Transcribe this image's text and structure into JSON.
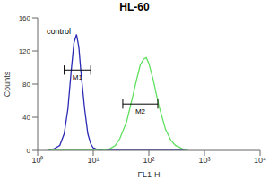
{
  "chart_data": {
    "type": "line",
    "title": "HL-60",
    "x_label": "FL1-H",
    "y_label": "Counts",
    "log": "x",
    "grid": false,
    "xlim": [
      1,
      10000
    ],
    "xticks": [
      {
        "value": 1,
        "label": "10⁰"
      },
      {
        "value": 10,
        "label": "10¹"
      },
      {
        "value": 100,
        "label": "10²"
      },
      {
        "value": 1000,
        "label": "10³"
      },
      {
        "value": 10000,
        "label": "10⁴"
      }
    ],
    "ylim": [
      0,
      160
    ],
    "yticks": [
      0,
      40,
      80,
      120,
      160
    ],
    "x": [
      1.5,
      2,
      2.5,
      3,
      3.5,
      4,
      4.5,
      5,
      5.5,
      6,
      7,
      8,
      9,
      10,
      12,
      15,
      20,
      25,
      30,
      40,
      50,
      60,
      70,
      80,
      90,
      100,
      120,
      150,
      200,
      250,
      300,
      400,
      500
    ],
    "series": [
      {
        "color": "#2b2bb5",
        "values": [
          0,
          2,
          6,
          20,
          50,
          95,
          130,
          140,
          125,
          95,
          50,
          20,
          8,
          3,
          1,
          0,
          0,
          0,
          0,
          0,
          0,
          0,
          0,
          0,
          0,
          0,
          0,
          0,
          0,
          0,
          0,
          0,
          0
        ]
      },
      {
        "color": "#5ee05e",
        "values": [
          0,
          0,
          0,
          0,
          0,
          0,
          0,
          0,
          0,
          0,
          0,
          0,
          0,
          0,
          0,
          0,
          2,
          6,
          14,
          35,
          62,
          85,
          103,
          110,
          112,
          105,
          85,
          55,
          25,
          12,
          6,
          2,
          0
        ]
      }
    ],
    "annotations": [
      "control"
    ],
    "gates": [
      {
        "label": "M1",
        "x0": 3,
        "x1": 9,
        "y": 97
      },
      {
        "label": "M2",
        "x0": 34,
        "x1": 145,
        "y": 56
      }
    ]
  }
}
